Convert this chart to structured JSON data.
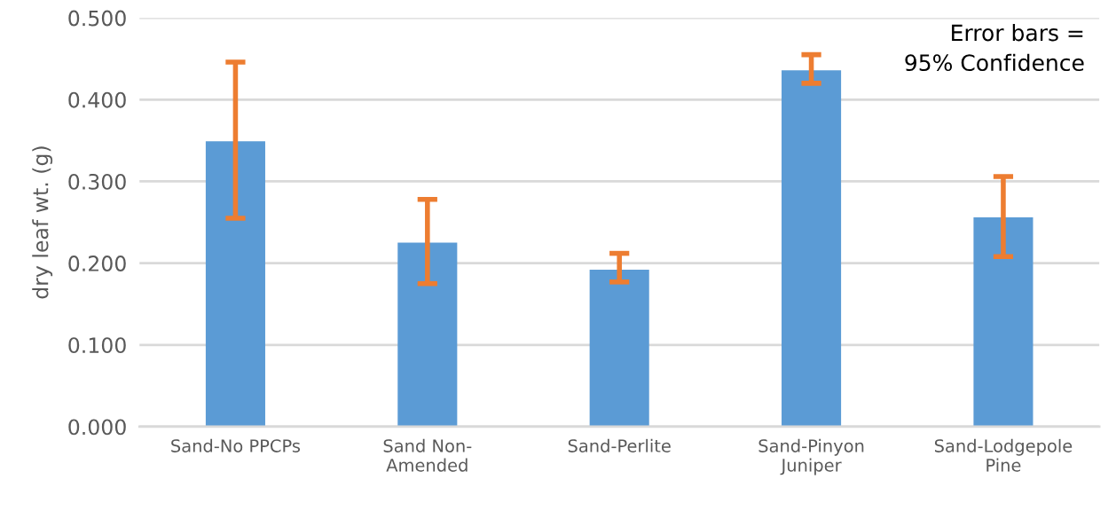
{
  "chart_data": {
    "type": "bar",
    "ylabel": "dry leaf wt. (g)",
    "categories": [
      "Sand-No PPCPs",
      "Sand Non-\nAmended",
      "Sand-Perlite",
      "Sand-Pinyon\nJuniper",
      "Sand-Lodgepole\nPine"
    ],
    "values": [
      0.349,
      0.225,
      0.192,
      0.436,
      0.256
    ],
    "errors": [
      [
        0.255,
        0.446
      ],
      [
        0.175,
        0.278
      ],
      [
        0.177,
        0.212
      ],
      [
        0.42,
        0.455
      ],
      [
        0.208,
        0.306
      ]
    ],
    "color": "#5b9bd5",
    "ylim": [
      0,
      0.5
    ],
    "yticks": [
      {
        "value": 0,
        "label": "0.000"
      },
      {
        "value": 0.1,
        "label": "0.100"
      },
      {
        "value": 0.2,
        "label": "0.200"
      },
      {
        "value": 0.3,
        "label": "0.300"
      },
      {
        "value": 0.4,
        "label": "0.400"
      },
      {
        "value": 0.5,
        "label": "0.500"
      }
    ],
    "grid": "y",
    "annotations": [
      "Error bars =\n95% Confidence"
    ]
  }
}
